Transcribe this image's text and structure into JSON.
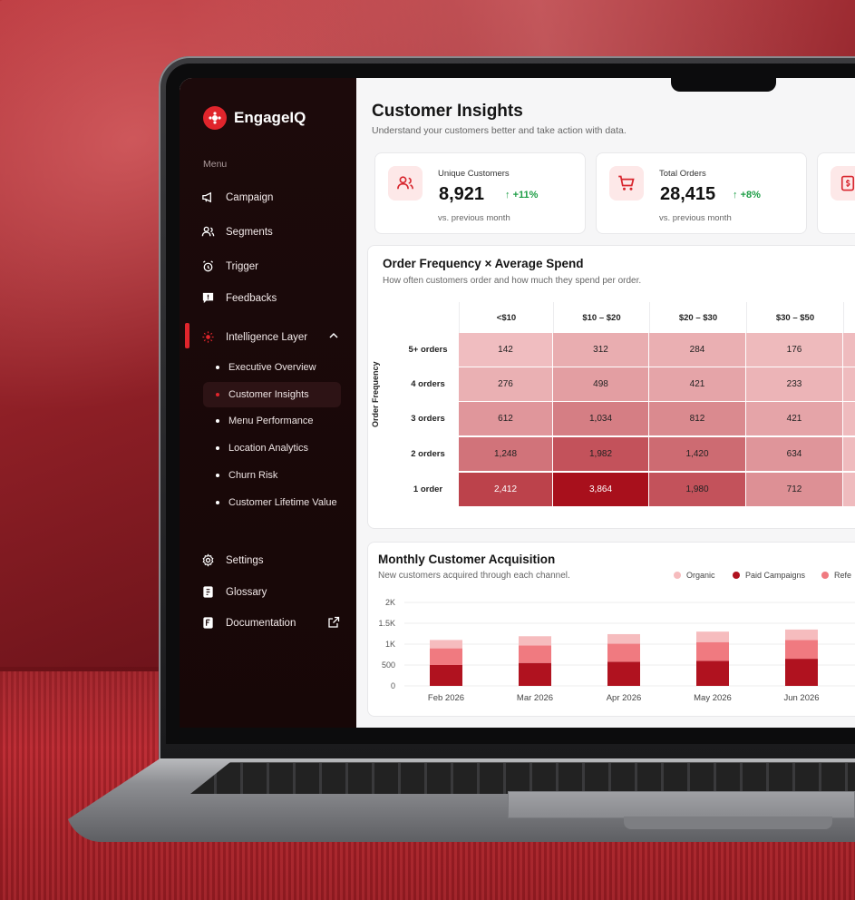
{
  "app": {
    "brand": "EngageIQ",
    "menu_label": "Menu"
  },
  "sidebar": {
    "items": [
      {
        "label": "Campaign",
        "icon": "megaphone-icon"
      },
      {
        "label": "Segments",
        "icon": "users-icon"
      },
      {
        "label": "Trigger",
        "icon": "alarm-icon"
      },
      {
        "label": "Feedbacks",
        "icon": "message-alert-icon"
      },
      {
        "label": "Intelligence Layer",
        "icon": "sparkle-icon"
      }
    ],
    "sub_items": [
      {
        "label": "Executive Overview"
      },
      {
        "label": "Customer Insights"
      },
      {
        "label": "Menu Performance"
      },
      {
        "label": "Location Analytics"
      },
      {
        "label": "Churn Risk"
      },
      {
        "label": "Customer Lifetime Value"
      }
    ],
    "footer_items": [
      {
        "label": "Settings",
        "icon": "gear-icon"
      },
      {
        "label": "Glossary",
        "icon": "book-icon"
      },
      {
        "label": "Documentation",
        "icon": "document-icon"
      }
    ]
  },
  "page": {
    "title": "Customer Insights",
    "subtitle": "Understand your customers better and take action with data."
  },
  "kpis": [
    {
      "label": "Unique Customers",
      "value": "8,921",
      "delta": "+11%",
      "foot": "vs. previous month"
    },
    {
      "label": "Total Orders",
      "value": "28,415",
      "delta": "+8%",
      "foot": "vs. previous month"
    }
  ],
  "heatmap": {
    "title": "Order Frequency × Average Spend",
    "subtitle": "How often customers order and how much they spend per order.",
    "ylabel": "Order Frequency",
    "columns": [
      "<$10",
      "$10 – $20",
      "$20 – $30",
      "$30 – $50"
    ],
    "rows": [
      {
        "label": "5+ orders",
        "values": [
          "142",
          "312",
          "284",
          "176"
        ]
      },
      {
        "label": "4 orders",
        "values": [
          "276",
          "498",
          "421",
          "233"
        ]
      },
      {
        "label": "3 orders",
        "values": [
          "612",
          "1,034",
          "812",
          "421"
        ]
      },
      {
        "label": "2 orders",
        "values": [
          "1,248",
          "1,982",
          "1,420",
          "634"
        ]
      },
      {
        "label": "1 order",
        "values": [
          "2,412",
          "3,864",
          "1,980",
          "712"
        ]
      }
    ],
    "colors": {
      "low": "#fbd9da",
      "high": "#a8101c"
    }
  },
  "acquisition": {
    "title": "Monthly Customer Acquisition",
    "subtitle": "New customers acquired through each channel."
  },
  "chart_data": {
    "type": "bar",
    "stacked": true,
    "categories": [
      "Feb 2026",
      "Mar 2026",
      "Apr 2026",
      "May 2026",
      "Jun 2026"
    ],
    "series": [
      {
        "name": "Paid Campaigns",
        "color": "#b0121f",
        "values": [
          500,
          550,
          580,
          600,
          650
        ]
      },
      {
        "name": "Refe",
        "color": "#f07a80",
        "values": [
          400,
          420,
          430,
          450,
          450
        ]
      },
      {
        "name": "Organic",
        "color": "#f6bcbe",
        "values": [
          200,
          220,
          230,
          250,
          250
        ]
      }
    ],
    "yticks": [
      "2K",
      "1.5K",
      "1K",
      "500",
      "0"
    ],
    "ylim": [
      0,
      2000
    ],
    "grid": true,
    "legend_position": "top-right"
  }
}
